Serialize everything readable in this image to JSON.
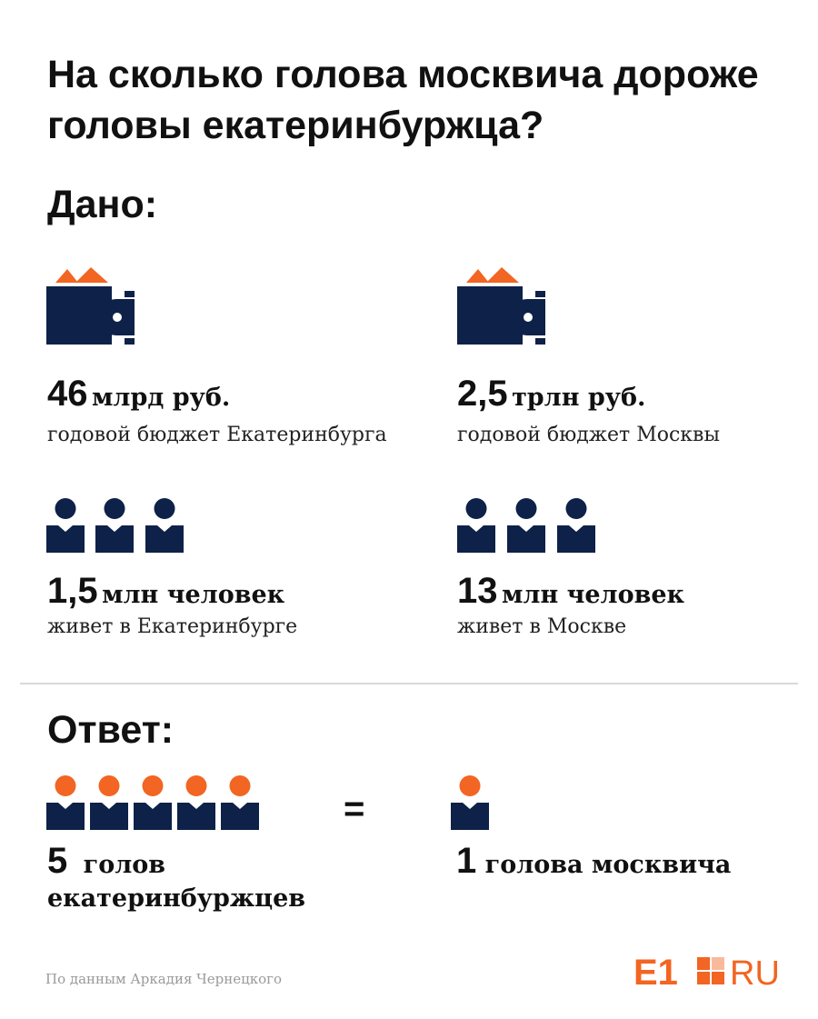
{
  "title": "На сколько голова москвича дороже головы екатеринбуржца?",
  "given_heading": "Дано:",
  "answer_heading": "Ответ:",
  "colors": {
    "navy": "#0e2148",
    "orange": "#f26522",
    "text": "#111111",
    "divider": "#d9d9d9"
  },
  "icons": {
    "wallet": "wallet-icon",
    "person": "person-icon"
  },
  "ekb": {
    "budget_value": "46",
    "budget_unit": "млрд руб.",
    "budget_caption": "годовой бюджет Екатеринбурга",
    "population_value": "1,5",
    "population_unit": "млн человек",
    "population_caption": "живет в Екатеринбурге"
  },
  "moscow": {
    "budget_value": "2,5",
    "budget_unit": "трлн руб.",
    "budget_caption": "годовой бюджет Москвы",
    "population_value": "13",
    "population_unit": "млн человек",
    "population_caption": "живет в Москве"
  },
  "answer": {
    "left_value": "5",
    "left_text_line1": "голов",
    "left_text_line2": "екатеринбуржцев",
    "equals": "=",
    "right_value": "1",
    "right_text": "голова москвича"
  },
  "footer": {
    "source": "По данным Аркадия Чернецкого",
    "logo_e1": "E1",
    "logo_ru": "RU"
  }
}
